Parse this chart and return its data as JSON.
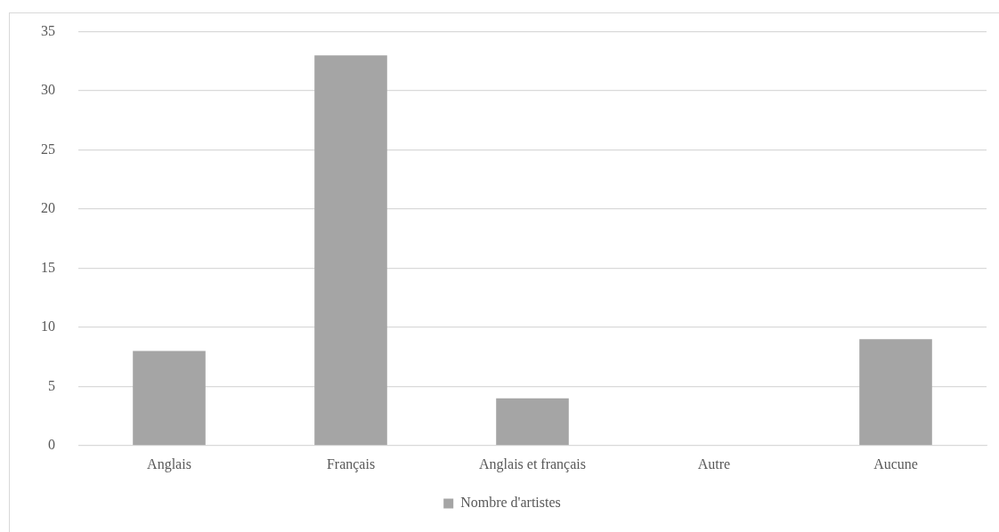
{
  "chart_data": {
    "type": "bar",
    "categories": [
      "Anglais",
      "Français",
      "Anglais et français",
      "Autre",
      "Aucune"
    ],
    "series": [
      {
        "name": "Nombre d'artistes",
        "color": "#a5a5a5",
        "values": [
          8,
          33,
          4,
          0,
          9
        ]
      }
    ],
    "ylim": [
      0,
      35
    ],
    "yticks": [
      0,
      5,
      10,
      15,
      20,
      25,
      30,
      35
    ],
    "grid": "y",
    "legend": "bottom"
  }
}
